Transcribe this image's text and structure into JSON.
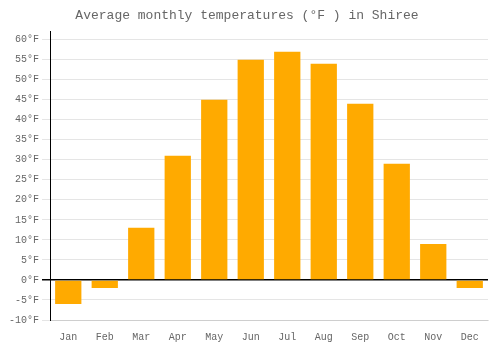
{
  "chart_data": {
    "type": "bar",
    "title": "Average monthly temperatures (°F ) in Shiree",
    "categories": [
      "Jan",
      "Feb",
      "Mar",
      "Apr",
      "May",
      "Jun",
      "Jul",
      "Aug",
      "Sep",
      "Oct",
      "Nov",
      "Dec"
    ],
    "values": [
      -6,
      -2,
      13,
      31,
      45,
      55,
      57,
      54,
      44,
      29,
      9,
      -2
    ],
    "color": "#FFAA00",
    "ylim": [
      -10,
      62
    ],
    "yticks": [
      {
        "value": -10,
        "label": "-10°F"
      },
      {
        "value": -5,
        "label": "-5°F"
      },
      {
        "value": 0,
        "label": "0°F"
      },
      {
        "value": 5,
        "label": "5°F"
      },
      {
        "value": 10,
        "label": "10°F"
      },
      {
        "value": 15,
        "label": "15°F"
      },
      {
        "value": 20,
        "label": "20°F"
      },
      {
        "value": 25,
        "label": "25°F"
      },
      {
        "value": 30,
        "label": "30°F"
      },
      {
        "value": 35,
        "label": "35°F"
      },
      {
        "value": 40,
        "label": "40°F"
      },
      {
        "value": 45,
        "label": "45°F"
      },
      {
        "value": 50,
        "label": "50°F"
      },
      {
        "value": 55,
        "label": "55°F"
      },
      {
        "value": 60,
        "label": "60°F"
      }
    ],
    "grid": true
  }
}
